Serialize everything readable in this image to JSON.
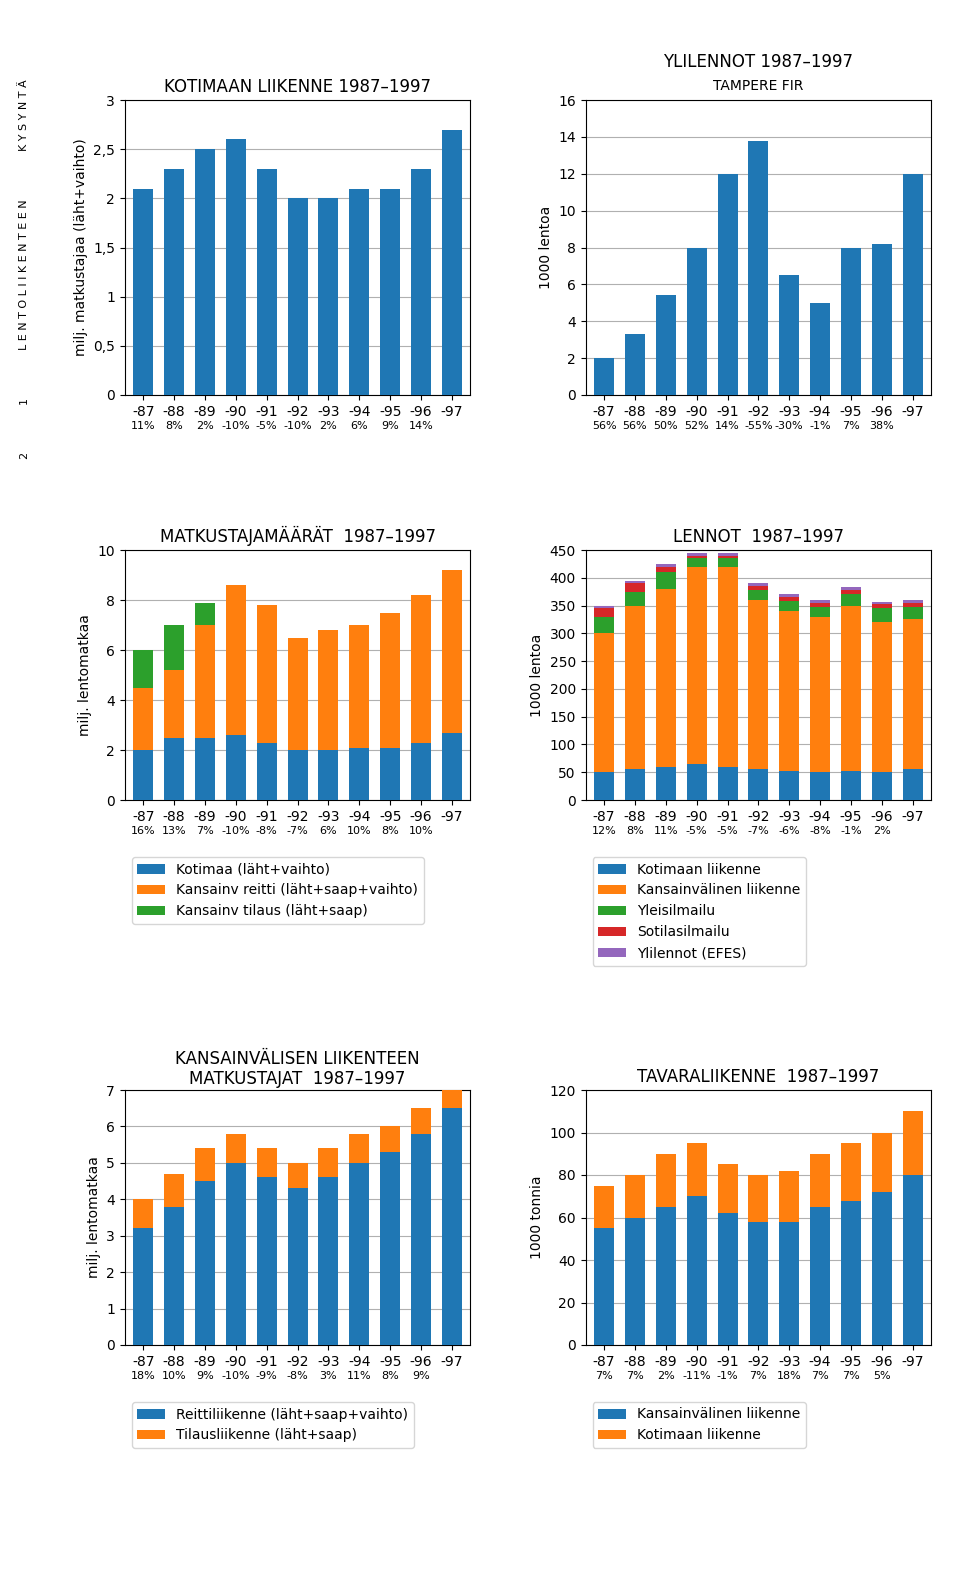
{
  "annotations": [
    "K Y S Y N T Ä",
    "L E N T O L I I K E N T E E N",
    "1",
    "2"
  ],
  "chart_data": [
    {
      "type": "bar",
      "title": "KOTIMAAN LIIKENNE 1987–1997",
      "ylabel": "milj. matkustajaa (läht+vaihto)",
      "categories": [
        "-87",
        "-88",
        "-89",
        "-90",
        "-91",
        "-92",
        "-93",
        "-94",
        "-95",
        "-96",
        "-97"
      ],
      "values": [
        2.1,
        2.3,
        2.5,
        2.6,
        2.3,
        2.0,
        2.0,
        2.1,
        2.1,
        2.3,
        2.7
      ],
      "ylim": [
        0,
        3
      ],
      "yticks": [
        0,
        {
          "value": 0.5,
          "label": "0,5"
        },
        1,
        {
          "value": 1.5,
          "label": "1,5"
        },
        2,
        {
          "value": 2.5,
          "label": "2,5"
        },
        3
      ],
      "grid": true,
      "annotations": [
        {
          "x": "-87",
          "text": "11%"
        },
        {
          "x": "-88",
          "text": "8%"
        },
        {
          "x": "-89",
          "text": "2%"
        },
        {
          "x": "-90",
          "text": "-10%"
        },
        {
          "x": "-91",
          "text": "-5%"
        },
        {
          "x": "-92",
          "text": "-10%"
        },
        {
          "x": "-93",
          "text": "2%"
        },
        {
          "x": "-94",
          "text": "6%"
        },
        {
          "x": "-95",
          "text": "9%"
        },
        {
          "x": "-96",
          "text": "14%"
        }
      ]
    },
    {
      "type": "bar",
      "title": "YLILENNOT 1987–1997",
      "subtitle": "TAMPERE FIR",
      "ylabel": "1000 lentoa",
      "categories": [
        "-87",
        "-88",
        "-89",
        "-90",
        "-91",
        "-92",
        "-93",
        "-94",
        "-95",
        "-96",
        "-97"
      ],
      "values": [
        2.0,
        3.3,
        5.4,
        8.0,
        12.0,
        13.8,
        6.5,
        5.0,
        8.0,
        8.2,
        12.0
      ],
      "ylim": [
        0,
        16
      ],
      "yticks": [
        0,
        2,
        4,
        6,
        8,
        10,
        12,
        14,
        16
      ],
      "grid": true,
      "annotations": [
        {
          "x": "-87",
          "text": "56%"
        },
        {
          "x": "-88",
          "text": "56%"
        },
        {
          "x": "-89",
          "text": "50%"
        },
        {
          "x": "-90",
          "text": "52%"
        },
        {
          "x": "-91",
          "text": "14%"
        },
        {
          "x": "-92",
          "text": "-55%"
        },
        {
          "x": "-93",
          "text": "-30%"
        },
        {
          "x": "-94",
          "text": "-1%"
        },
        {
          "x": "-95",
          "text": "7%"
        },
        {
          "x": "-96",
          "text": "38%"
        }
      ]
    },
    {
      "type": "bar",
      "title": "MATKUSTAJAMÄÄRÄT  1987–1997",
      "ylabel": "milj. lentomatkaa",
      "categories": [
        "-87",
        "-88",
        "-89",
        "-90",
        "-91",
        "-92",
        "-93",
        "-94",
        "-95",
        "-96",
        "-97"
      ],
      "series": [
        {
          "name": "Kotimaa (läht+vaihto)",
          "values": [
            2.0,
            2.5,
            2.5,
            2.6,
            2.3,
            2.0,
            2.0,
            2.1,
            2.1,
            2.3,
            2.7
          ]
        },
        {
          "name": "Kansainv reitti (läht+saap+vaihto)",
          "values": [
            4.5,
            5.2,
            7.0,
            8.6,
            7.8,
            6.5,
            6.8,
            7.0,
            7.5,
            8.2,
            9.2
          ]
        },
        {
          "name": "Kansainv tilaus (läht+saap)",
          "values": [
            6.0,
            7.0,
            7.9,
            8.6,
            7.8,
            6.5,
            6.8,
            7.0,
            7.5,
            8.2,
            9.2
          ]
        }
      ],
      "ylim": [
        0,
        10
      ],
      "yticks": [
        0,
        2,
        4,
        6,
        8,
        10
      ],
      "grid": true,
      "legend": "below",
      "annotations": [
        {
          "x": "-87",
          "text": "16%"
        },
        {
          "x": "-88",
          "text": "13%"
        },
        {
          "x": "-89",
          "text": "7%"
        },
        {
          "x": "-90",
          "text": "-10%"
        },
        {
          "x": "-91",
          "text": "-8%"
        },
        {
          "x": "-92",
          "text": "-7%"
        },
        {
          "x": "-93",
          "text": "6%"
        },
        {
          "x": "-94",
          "text": "10%"
        },
        {
          "x": "-95",
          "text": "8%"
        },
        {
          "x": "-96",
          "text": "10%"
        }
      ]
    },
    {
      "type": "bar",
      "title": "LENNOT  1987–1997",
      "ylabel": "1000 lentoa",
      "categories": [
        "-87",
        "-88",
        "-89",
        "-90",
        "-91",
        "-92",
        "-93",
        "-94",
        "-95",
        "-96",
        "-97"
      ],
      "series": [
        {
          "name": "Kotimaan liikenne",
          "values": [
            50,
            55,
            60,
            65,
            60,
            55,
            52,
            50,
            52,
            50,
            55
          ]
        },
        {
          "name": "Kansainvälinen liikenne",
          "values": [
            300,
            350,
            380,
            420,
            420,
            360,
            340,
            330,
            350,
            320,
            325
          ]
        },
        {
          "name": "Yleisilmailu",
          "values": [
            330,
            375,
            410,
            435,
            435,
            378,
            358,
            348,
            370,
            345,
            348
          ]
        },
        {
          "name": "Sotilasilmailu",
          "values": [
            345,
            390,
            420,
            440,
            440,
            385,
            365,
            355,
            378,
            352,
            355
          ]
        },
        {
          "name": "Ylilennot (EFES)",
          "values": [
            350,
            395,
            425,
            445,
            445,
            390,
            370,
            360,
            383,
            357,
            360
          ]
        }
      ],
      "ylim": [
        0,
        450
      ],
      "yticks": [
        0,
        50,
        100,
        150,
        200,
        250,
        300,
        350,
        400,
        450
      ],
      "grid": true,
      "legend": "below",
      "annotations": [
        {
          "x": "-87",
          "text": "12%"
        },
        {
          "x": "-88",
          "text": "8%"
        },
        {
          "x": "-89",
          "text": "11%"
        },
        {
          "x": "-90",
          "text": "-5%"
        },
        {
          "x": "-91",
          "text": "-5%"
        },
        {
          "x": "-92",
          "text": "-7%"
        },
        {
          "x": "-93",
          "text": "-6%"
        },
        {
          "x": "-94",
          "text": "-8%"
        },
        {
          "x": "-95",
          "text": "-1%"
        },
        {
          "x": "-96",
          "text": "2%"
        }
      ]
    },
    {
      "type": "bar",
      "title": "KANSAINVÄLISEN LIIKENTEEN\nMATKUSTAJAT  1987–1997",
      "ylabel": "milj. lentomatkaa",
      "categories": [
        "-87",
        "-88",
        "-89",
        "-90",
        "-91",
        "-92",
        "-93",
        "-94",
        "-95",
        "-96",
        "-97"
      ],
      "series": [
        {
          "name": "Reittiliikenne (läht+saap+vaihto)",
          "values": [
            3.2,
            3.8,
            4.5,
            5.0,
            4.6,
            4.3,
            4.6,
            5.0,
            5.3,
            5.8,
            6.5
          ]
        },
        {
          "name": "Tilausliikenne (läht+saap)",
          "values": [
            4.0,
            4.7,
            5.4,
            5.8,
            5.4,
            5.0,
            5.4,
            5.8,
            6.0,
            6.5,
            7.0
          ]
        }
      ],
      "ylim": [
        0,
        7
      ],
      "yticks": [
        0,
        1,
        2,
        3,
        4,
        5,
        6,
        7
      ],
      "grid": true,
      "legend": "below",
      "annotations": [
        {
          "x": "-87",
          "text": "18%"
        },
        {
          "x": "-88",
          "text": "10%"
        },
        {
          "x": "-89",
          "text": "9%"
        },
        {
          "x": "-90",
          "text": "-10%"
        },
        {
          "x": "-91",
          "text": "-9%"
        },
        {
          "x": "-92",
          "text": "-8%"
        },
        {
          "x": "-93",
          "text": "3%"
        },
        {
          "x": "-94",
          "text": "11%"
        },
        {
          "x": "-95",
          "text": "8%"
        },
        {
          "x": "-96",
          "text": "9%"
        }
      ]
    },
    {
      "type": "bar",
      "title": "TAVARALIIKENNE  1987–1997",
      "ylabel": "1000 tonnia",
      "categories": [
        "-87",
        "-88",
        "-89",
        "-90",
        "-91",
        "-92",
        "-93",
        "-94",
        "-95",
        "-96",
        "-97"
      ],
      "series": [
        {
          "name": "Kansainvälinen liikenne",
          "values": [
            55,
            60,
            65,
            70,
            62,
            58,
            58,
            65,
            68,
            72,
            80
          ]
        },
        {
          "name": "Kotimaan liikenne",
          "values": [
            75,
            80,
            90,
            95,
            85,
            80,
            82,
            90,
            95,
            100,
            110
          ]
        }
      ],
      "ylim": [
        0,
        120
      ],
      "yticks": [
        0,
        20,
        40,
        60,
        80,
        100,
        120
      ],
      "grid": true,
      "legend": "below",
      "annotations": [
        {
          "x": "-87",
          "text": "7%"
        },
        {
          "x": "-88",
          "text": "7%"
        },
        {
          "x": "-89",
          "text": "2%"
        },
        {
          "x": "-90",
          "text": "-11%"
        },
        {
          "x": "-91",
          "text": "-1%"
        },
        {
          "x": "-92",
          "text": "7%"
        },
        {
          "x": "-93",
          "text": "18%"
        },
        {
          "x": "-94",
          "text": "7%"
        },
        {
          "x": "-95",
          "text": "7%"
        },
        {
          "x": "-96",
          "text": "5%"
        }
      ]
    }
  ]
}
